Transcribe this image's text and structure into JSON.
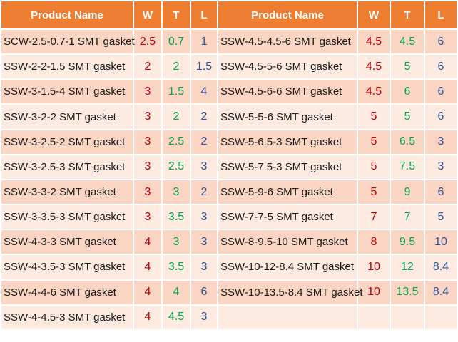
{
  "headers": {
    "product_name": "Product Name",
    "w": "W",
    "t": "T",
    "l": "L"
  },
  "colors": {
    "header_bg": "#ed7d31",
    "row_odd_bg": "#fbd5c4",
    "row_even_bg": "#fdeae1",
    "w_value": "#c00000",
    "t_value": "#00a651",
    "l_value": "#2e5597"
  },
  "rows": [
    {
      "left": {
        "name": "SCW-2.5-0.7-1 SMT gasket",
        "w": "2.5",
        "t": "0.7",
        "l": "1"
      },
      "right": {
        "name": "SSW-4.5-4.5-6 SMT gasket",
        "w": "4.5",
        "t": "4.5",
        "l": "6"
      }
    },
    {
      "left": {
        "name": "SSW-2-2-1.5 SMT gasket",
        "w": "2",
        "t": "2",
        "l": "1.5"
      },
      "right": {
        "name": "SSW-4.5-5-6 SMT gasket",
        "w": "4.5",
        "t": "5",
        "l": "6"
      }
    },
    {
      "left": {
        "name": "SSW-3-1.5-4 SMT gasket",
        "w": "3",
        "t": "1.5",
        "l": "4"
      },
      "right": {
        "name": "SSW-4.5-6-6 SMT gasket",
        "w": "4.5",
        "t": "6",
        "l": "6"
      }
    },
    {
      "left": {
        "name": "SSW-3-2-2 SMT gasket",
        "w": "3",
        "t": "2",
        "l": "2"
      },
      "right": {
        "name": "SSW-5-5-6 SMT gasket",
        "w": "5",
        "t": "5",
        "l": "6"
      }
    },
    {
      "left": {
        "name": "SSW-3-2.5-2 SMT gasket",
        "w": "3",
        "t": "2.5",
        "l": "2"
      },
      "right": {
        "name": "SSW-5-6.5-3 SMT gasket",
        "w": "5",
        "t": "6.5",
        "l": "3"
      }
    },
    {
      "left": {
        "name": "SSW-3-2.5-3 SMT gasket",
        "w": "3",
        "t": "2.5",
        "l": "3"
      },
      "right": {
        "name": "SSW-5-7.5-3 SMT gasket",
        "w": "5",
        "t": "7.5",
        "l": "3"
      }
    },
    {
      "left": {
        "name": "SSW-3-3-2 SMT gasket",
        "w": "3",
        "t": "3",
        "l": "2"
      },
      "right": {
        "name": "SSW-5-9-6 SMT gasket",
        "w": "5",
        "t": "9",
        "l": "6"
      }
    },
    {
      "left": {
        "name": "SSW-3-3.5-3 SMT gasket",
        "w": "3",
        "t": "3.5",
        "l": "3"
      },
      "right": {
        "name": "SSW-7-7-5 SMT gasket",
        "w": "7",
        "t": "7",
        "l": "5"
      }
    },
    {
      "left": {
        "name": "SSW-4-3-3 SMT gasket",
        "w": "4",
        "t": "3",
        "l": "3"
      },
      "right": {
        "name": "SSW-8-9.5-10 SMT gasket",
        "w": "8",
        "t": "9.5",
        "l": "10"
      }
    },
    {
      "left": {
        "name": "SSW-4-3.5-3 SMT gasket",
        "w": "4",
        "t": "3.5",
        "l": "3"
      },
      "right": {
        "name": "SSW-10-12-8.4 SMT gasket",
        "w": "10",
        "t": "12",
        "l": "8.4"
      }
    },
    {
      "left": {
        "name": "SSW-4-4-6 SMT gasket",
        "w": "4",
        "t": "4",
        "l": "6"
      },
      "right": {
        "name": "SSW-10-13.5-8.4 SMT gasket",
        "w": "10",
        "t": "13.5",
        "l": "8.4"
      }
    },
    {
      "left": {
        "name": "SSW-4-4.5-3 SMT gasket",
        "w": "4",
        "t": "4.5",
        "l": "3"
      },
      "right": {
        "name": "",
        "w": "",
        "t": "",
        "l": ""
      }
    }
  ]
}
